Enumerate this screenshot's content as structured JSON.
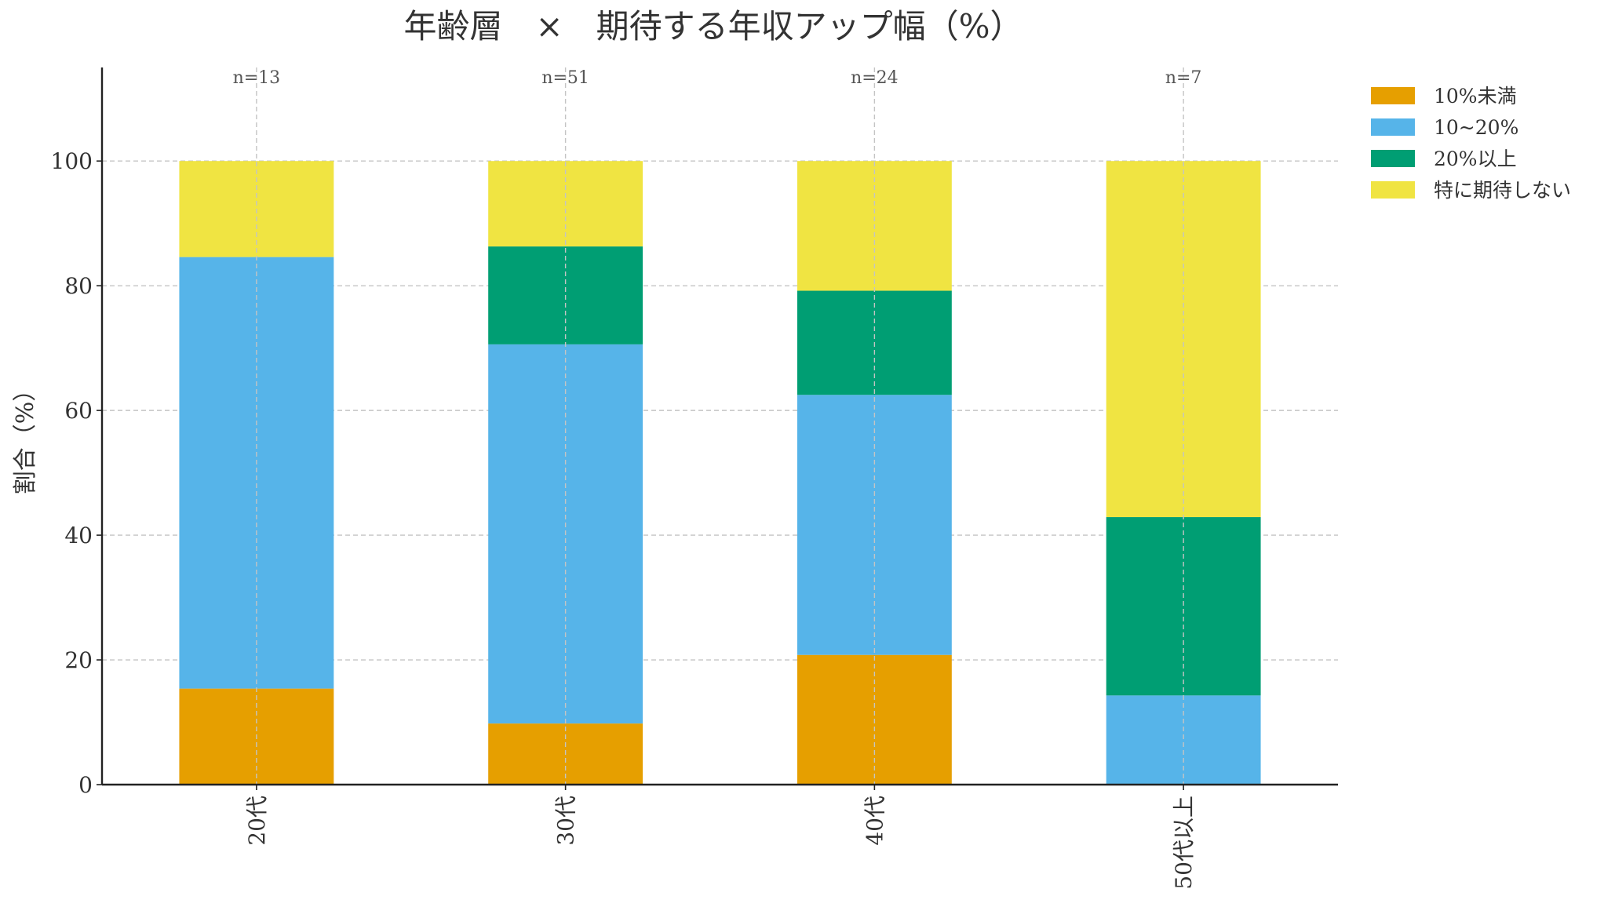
{
  "chart_data": {
    "type": "bar",
    "stacked": true,
    "title": "年齢層　×　期待する年収アップ幅（%）",
    "xlabel": "",
    "ylabel": "割合（%）",
    "ylim": [
      0,
      115
    ],
    "yticks": [
      0,
      20,
      40,
      60,
      80,
      100
    ],
    "grid": true,
    "legend_position": "top-right (outside plot)",
    "categories": [
      "20代",
      "30代",
      "40代",
      "50代以上"
    ],
    "sample_sizes": [
      "n=13",
      "n=51",
      "n=24",
      "n=7"
    ],
    "series": [
      {
        "name": "10%未満",
        "color": "#E69F00",
        "values": [
          15.4,
          9.8,
          20.8,
          0.0
        ]
      },
      {
        "name": "10~20%",
        "color": "#56B4E9",
        "values": [
          69.2,
          60.8,
          41.7,
          14.3
        ]
      },
      {
        "name": "20%以上",
        "color": "#009E73",
        "values": [
          0.0,
          15.7,
          16.7,
          28.6
        ]
      },
      {
        "name": "特に期待しない",
        "color": "#F0E442",
        "values": [
          15.4,
          13.7,
          20.8,
          57.1
        ]
      }
    ]
  }
}
